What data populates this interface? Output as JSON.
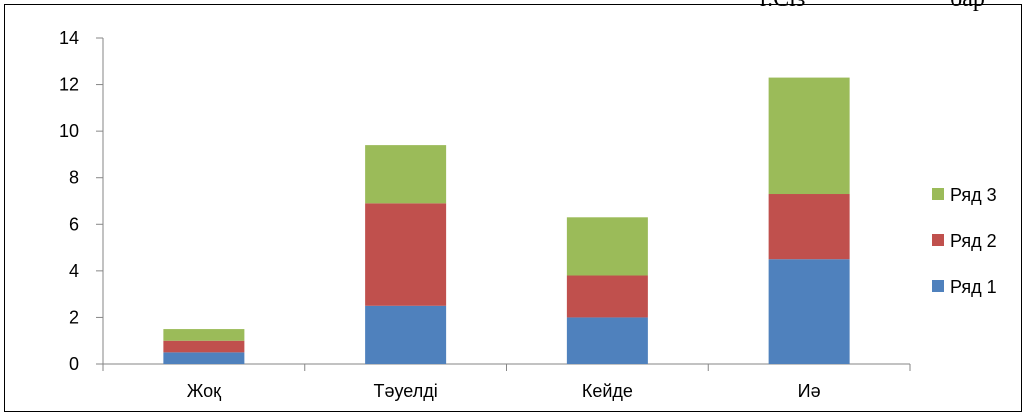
{
  "header_fragments": [
    "г.Сіз",
    "бар"
  ],
  "chart_data": {
    "type": "bar",
    "stacked": true,
    "categories": [
      "Жоқ",
      "Тәуелді",
      "Кейде",
      "Иә"
    ],
    "series": [
      {
        "name": "Ряд 1",
        "color": "#4f81bd",
        "values": [
          0.5,
          2.5,
          2.0,
          4.5
        ]
      },
      {
        "name": "Ряд 2",
        "color": "#c0504d",
        "values": [
          0.5,
          4.4,
          1.8,
          2.8
        ]
      },
      {
        "name": "Ряд 3",
        "color": "#9bbb59",
        "values": [
          0.5,
          2.5,
          2.5,
          5.0
        ]
      }
    ],
    "ylim": [
      0,
      14
    ],
    "yticks": [
      0,
      2,
      4,
      6,
      8,
      10,
      12,
      14
    ],
    "grid": false,
    "legend_position": "right"
  }
}
